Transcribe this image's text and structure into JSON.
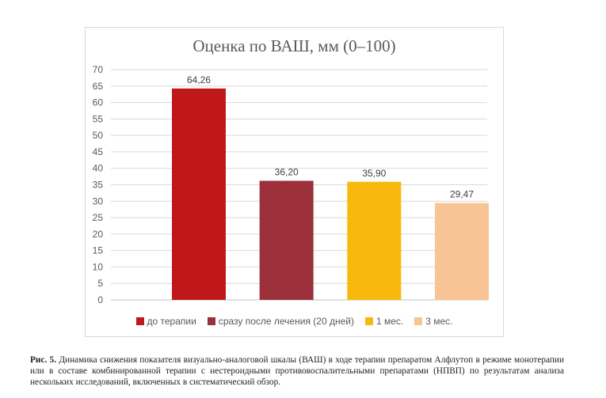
{
  "chart_data": {
    "type": "bar",
    "title": "Оценка по ВАШ, мм (0–100)",
    "ylim": [
      0,
      70
    ],
    "yticks": [
      0,
      5,
      10,
      15,
      20,
      25,
      30,
      35,
      40,
      45,
      50,
      55,
      60,
      65,
      70
    ],
    "grid": true,
    "legend_position": "bottom",
    "series": [
      {
        "name": "до терапии",
        "value": 64.26,
        "label": "64,26",
        "color": "#c0181a"
      },
      {
        "name": "сразу после лечения (20 дней)",
        "value": 36.2,
        "label": "36,20",
        "color": "#9b303a"
      },
      {
        "name": "1 мес.",
        "value": 35.9,
        "label": "35,90",
        "color": "#f8b80e"
      },
      {
        "name": "3 мес.",
        "value": 29.47,
        "label": "29,47",
        "color": "#f8c496"
      }
    ]
  },
  "caption": {
    "prefix": "Рис. 5.",
    "text": "Динамика снижения показателя визуально-аналоговой шкалы (ВАШ) в ходе терапии препаратом Алфлутоп в режиме монотерапии или в составе комбинированной терапии с нестероидными противовоспалительными препаратами (НПВП) по результатам анализа нескольких исследований, включенных в систематический обзор."
  }
}
